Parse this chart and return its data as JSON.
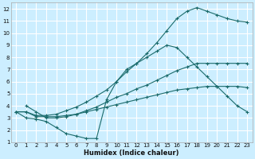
{
  "xlabel": "Humidex (Indice chaleur)",
  "bg_color": "#cceeff",
  "grid_color": "#ffffff",
  "line_color": "#1a6b6b",
  "xlim": [
    -0.5,
    23.5
  ],
  "ylim": [
    1,
    12.5
  ],
  "xticks": [
    0,
    1,
    2,
    3,
    4,
    5,
    6,
    7,
    8,
    9,
    10,
    11,
    12,
    13,
    14,
    15,
    16,
    17,
    18,
    19,
    20,
    21,
    22,
    23
  ],
  "yticks": [
    1,
    2,
    3,
    4,
    5,
    6,
    7,
    8,
    9,
    10,
    11,
    12
  ],
  "line1_x": [
    1,
    2,
    3,
    4,
    5,
    6,
    7,
    8,
    9,
    10,
    11,
    12,
    13,
    14,
    15,
    16,
    17,
    18,
    19,
    20,
    21,
    22,
    23
  ],
  "line1_y": [
    4.0,
    3.5,
    3.0,
    3.0,
    3.1,
    3.3,
    3.6,
    3.9,
    4.3,
    4.7,
    5.0,
    5.4,
    5.7,
    6.1,
    6.5,
    6.9,
    7.2,
    7.5,
    7.5,
    7.5,
    7.5,
    7.5,
    7.5
  ],
  "line2_x": [
    0,
    1,
    2,
    3,
    4,
    5,
    6,
    7,
    8,
    9,
    10,
    11,
    12,
    13,
    14,
    15,
    16,
    17,
    18,
    19,
    20,
    21,
    22,
    23
  ],
  "line2_y": [
    3.5,
    3.0,
    2.9,
    2.7,
    2.2,
    1.7,
    1.5,
    1.3,
    1.3,
    4.5,
    6.0,
    7.0,
    7.5,
    8.0,
    8.5,
    9.0,
    8.8,
    8.0,
    7.2,
    6.4,
    5.6,
    4.8,
    4.0,
    3.5
  ],
  "line3_x": [
    0,
    1,
    2,
    3,
    4,
    5,
    6,
    7,
    8,
    9,
    10,
    11,
    12,
    13,
    14,
    15,
    16,
    17,
    18,
    19,
    20,
    21,
    22,
    23
  ],
  "line3_y": [
    3.5,
    3.5,
    3.2,
    3.2,
    3.3,
    3.6,
    3.9,
    4.3,
    4.8,
    5.3,
    6.0,
    6.8,
    7.5,
    8.3,
    9.2,
    10.2,
    11.2,
    11.8,
    12.1,
    11.8,
    11.5,
    11.2,
    11.0,
    10.9
  ],
  "line4_x": [
    0,
    1,
    2,
    3,
    4,
    5,
    6,
    7,
    8,
    9,
    10,
    11,
    12,
    13,
    14,
    15,
    16,
    17,
    18,
    19,
    20,
    21,
    22,
    23
  ],
  "line4_y": [
    3.5,
    3.5,
    3.1,
    3.1,
    3.1,
    3.2,
    3.3,
    3.5,
    3.7,
    3.9,
    4.1,
    4.3,
    4.5,
    4.7,
    4.9,
    5.1,
    5.3,
    5.4,
    5.5,
    5.6,
    5.6,
    5.6,
    5.6,
    5.5
  ]
}
